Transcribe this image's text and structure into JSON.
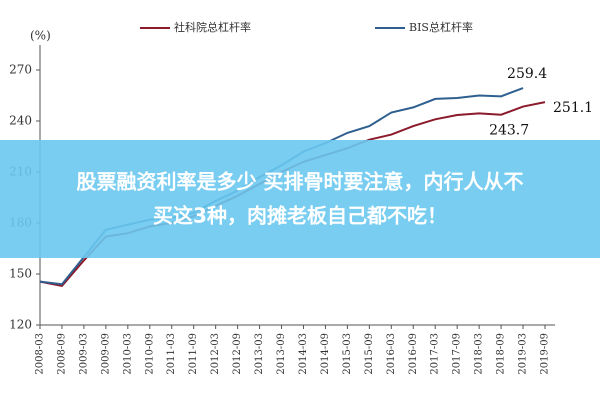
{
  "chart_data": {
    "type": "line",
    "y_label": "(%)",
    "categories": [
      "2008-03",
      "2008-09",
      "2009-03",
      "2009-09",
      "2010-03",
      "2010-09",
      "2011-03",
      "2011-09",
      "2012-03",
      "2012-09",
      "2013-03",
      "2013-09",
      "2014-03",
      "2014-09",
      "2015-03",
      "2015-09",
      "2016-03",
      "2016-09",
      "2017-03",
      "2017-09",
      "2018-03",
      "2018-09",
      "2019-03",
      "2019-09"
    ],
    "series": [
      {
        "name": "社科院总杠杆率",
        "color": "#8b1a2b",
        "values": [
          145.5,
          143,
          158,
          172,
          174,
          178,
          180,
          184,
          190,
          196,
          203,
          210,
          216,
          220,
          224,
          229,
          232,
          237,
          241,
          243.5,
          244.5,
          243.7,
          248.5,
          251.1
        ]
      },
      {
        "name": "BIS总杠杆率",
        "color": "#2e5f8f",
        "values": [
          145.5,
          144,
          160,
          176,
          179,
          182,
          183,
          186,
          193,
          199,
          207,
          214,
          222,
          227,
          233,
          237,
          245,
          248,
          253,
          253.5,
          255,
          254.5,
          259.4,
          null
        ]
      }
    ],
    "annotations": [
      {
        "text": "259.4",
        "series": 1,
        "index": 22
      },
      {
        "text": "251.1",
        "series": 0,
        "index": 23
      },
      {
        "text": "243.7",
        "series": 0,
        "index": 21
      }
    ],
    "ylim": [
      120,
      280
    ],
    "yticks": [
      120,
      150,
      180,
      210,
      240,
      270
    ],
    "grid": false
  },
  "banner": {
    "lines": [
      "股票融资利率是多少 买排骨时要注意，内行人从不",
      "买这3种，肉摊老板自己都不吃！"
    ]
  }
}
